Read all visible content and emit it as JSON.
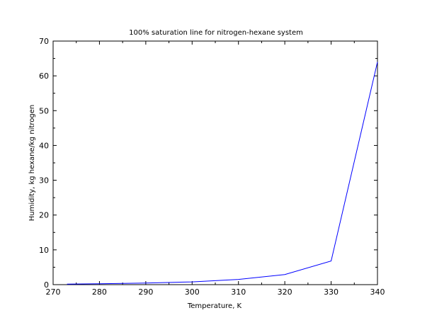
{
  "chart_data": {
    "type": "line",
    "title": "100% saturation line for nitrogen-hexane system",
    "xlabel": "Temperature, K",
    "ylabel": "Humidity, kg hexane/kg nitrogen",
    "xlim": [
      270,
      340
    ],
    "ylim": [
      0,
      70
    ],
    "x_ticks": [
      270,
      280,
      290,
      300,
      310,
      320,
      330,
      340
    ],
    "y_ticks": [
      0,
      10,
      20,
      30,
      40,
      50,
      60,
      70
    ],
    "grid": false,
    "legend": "none",
    "series": [
      {
        "color": "#0000ff",
        "x": [
          273,
          280,
          290,
          300,
          310,
          320,
          330,
          340
        ],
        "y": [
          0.15,
          0.25,
          0.45,
          0.8,
          1.5,
          2.9,
          6.8,
          64
        ]
      }
    ]
  }
}
